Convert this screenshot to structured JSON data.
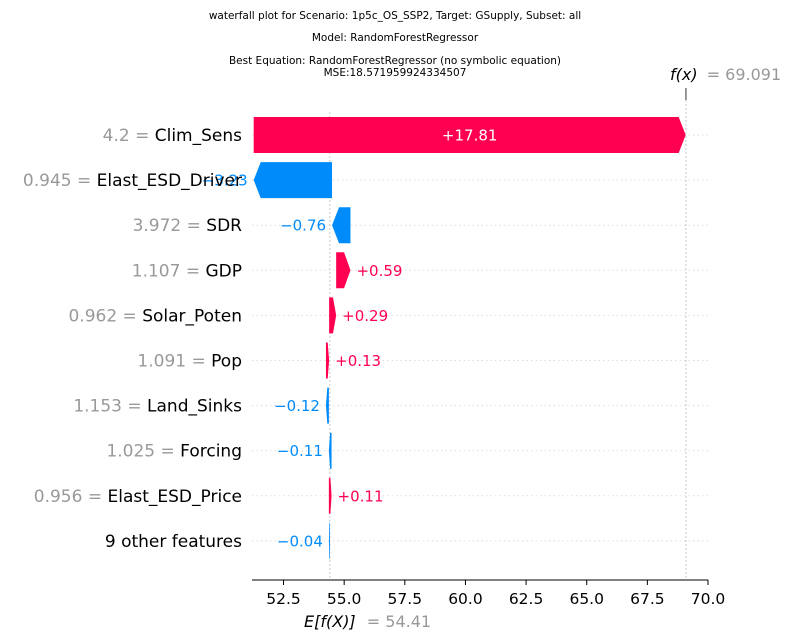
{
  "title_lines": [
    "waterfall plot for Scenario: 1p5c_OS_SSP2, Target: GSupply, Subset: all",
    "Model: RandomForestRegressor",
    "Best Equation: RandomForestRegressor (no symbolic equation)",
    "MSE:18.571959924334507"
  ],
  "chart_data": {
    "type": "waterfall",
    "base_value": 54.41,
    "base_label": "E[f(X)]",
    "base_value_text": "= 54.41",
    "final_value": 69.091,
    "final_label": "f(x)",
    "final_value_text": "= 69.091",
    "xlim": [
      51.2,
      70.0
    ],
    "xticks": [
      52.5,
      55.0,
      57.5,
      60.0,
      62.5,
      65.0,
      67.5,
      70.0
    ],
    "xtick_labels": [
      "52.5",
      "55.0",
      "57.5",
      "60.0",
      "62.5",
      "65.0",
      "67.5",
      "70.0"
    ],
    "features": [
      {
        "value": "4.2",
        "name": "Clim_Sens",
        "contribution": 17.81,
        "label": "+17.81"
      },
      {
        "value": "0.945",
        "name": "Elast_ESD_Driver",
        "contribution": -3.23,
        "label": "−3.23"
      },
      {
        "value": "3.972",
        "name": "SDR",
        "contribution": -0.76,
        "label": "−0.76"
      },
      {
        "value": "1.107",
        "name": "GDP",
        "contribution": 0.59,
        "label": "+0.59"
      },
      {
        "value": "0.962",
        "name": "Solar_Poten",
        "contribution": 0.29,
        "label": "+0.29"
      },
      {
        "value": "1.091",
        "name": "Pop",
        "contribution": 0.13,
        "label": "+0.13"
      },
      {
        "value": "1.153",
        "name": "Land_Sinks",
        "contribution": -0.12,
        "label": "−0.12"
      },
      {
        "value": "1.025",
        "name": "Forcing",
        "contribution": -0.11,
        "label": "−0.11"
      },
      {
        "value": "0.956",
        "name": "Elast_ESD_Price",
        "contribution": 0.11,
        "label": "+0.11"
      },
      {
        "value": "",
        "name": "9 other features",
        "contribution": -0.04,
        "label": "−0.04"
      }
    ],
    "colors": {
      "positive": "#ff0051",
      "negative": "#008bfb",
      "muted": "#999999"
    }
  }
}
